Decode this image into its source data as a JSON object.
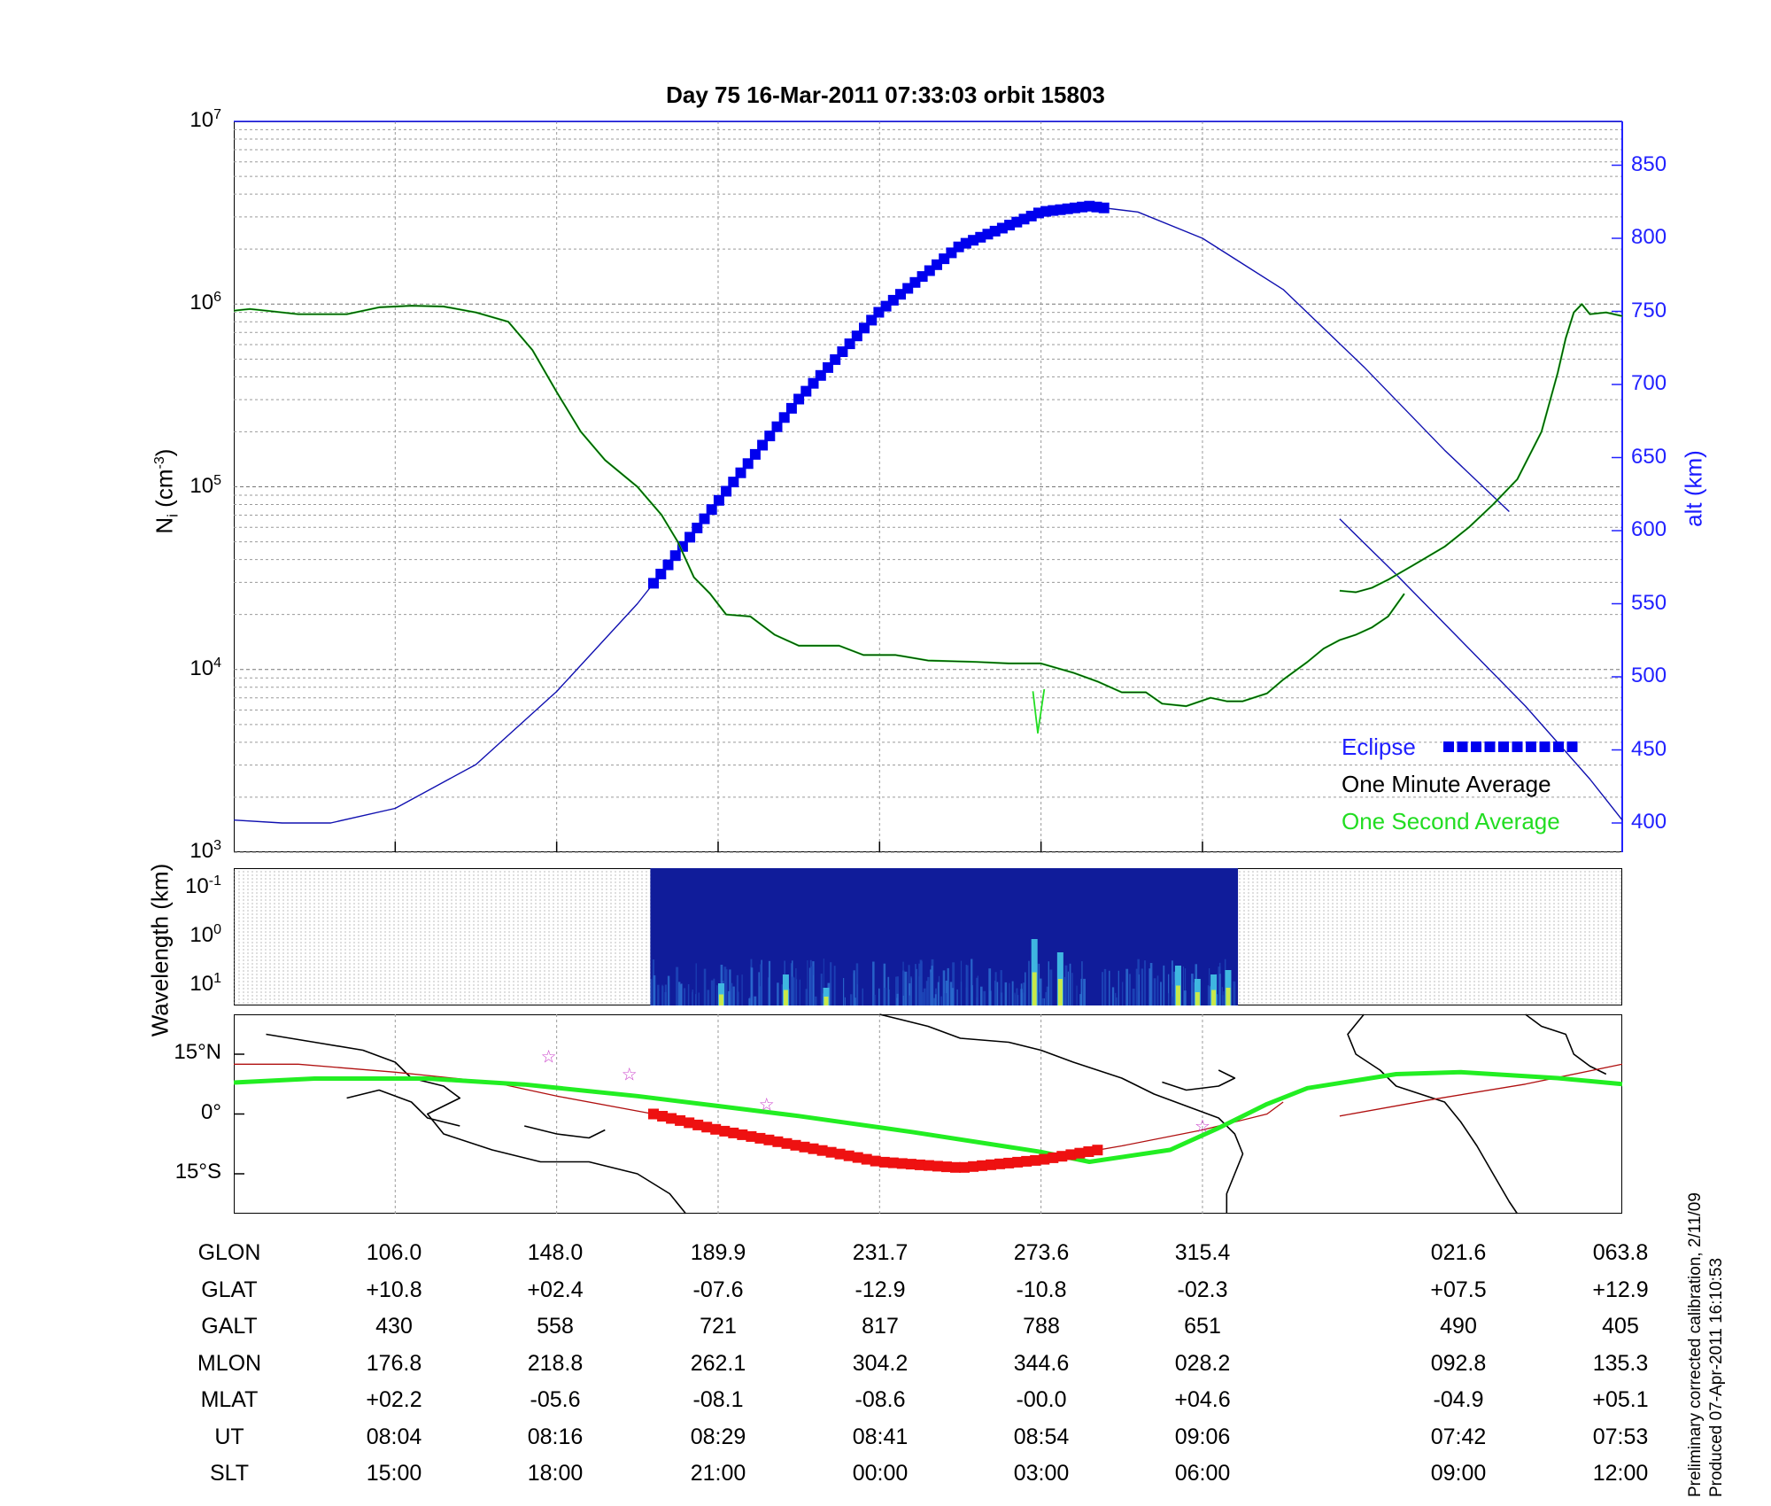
{
  "title": "Day 75  16-Mar-2011 07:33:03   orbit 15803",
  "chart_data": [
    {
      "type": "line",
      "panel": "density-altitude",
      "ylabel_left": "N_i (cm^-3)",
      "ylabel_left_main": "N",
      "ylabel_left_sub": "i",
      "ylabel_left_unit": " (cm",
      "ylabel_left_exp": "-3",
      "ylabel_left_close": ")",
      "ylabel_right": "alt (km)",
      "yscale_left": "log",
      "ylim_left": [
        1000,
        10000000
      ],
      "ylim_right": [
        380,
        880
      ],
      "yticks_left": [
        {
          "base": "10",
          "exp": "3"
        },
        {
          "base": "10",
          "exp": "4"
        },
        {
          "base": "10",
          "exp": "5"
        },
        {
          "base": "10",
          "exp": "6"
        },
        {
          "base": "10",
          "exp": "7"
        }
      ],
      "yticks_right": [
        "400",
        "450",
        "500",
        "550",
        "600",
        "650",
        "700",
        "750",
        "800",
        "850"
      ],
      "grid": true,
      "legend_position": "bottom-right",
      "legend": {
        "eclipse": "Eclipse",
        "one_minute": "One Minute Average",
        "one_second": "One Second Average"
      },
      "colors": {
        "altitude": "#1010b0",
        "eclipse": "#0000ee",
        "one_minute": "#000000",
        "one_second": "#22dd22"
      },
      "x_range_min": [
        0,
        86
      ],
      "altitude_km": {
        "segment_1": [
          [
            0,
            402
          ],
          [
            3,
            400
          ],
          [
            6,
            400
          ],
          [
            10,
            410
          ],
          [
            15,
            440
          ],
          [
            20,
            490
          ],
          [
            25,
            550
          ],
          [
            30,
            620
          ],
          [
            35,
            690
          ],
          [
            40,
            750
          ],
          [
            45,
            795
          ],
          [
            50,
            818
          ],
          [
            53,
            822
          ],
          [
            56,
            818
          ],
          [
            60,
            800
          ],
          [
            65,
            765
          ],
          [
            70,
            712
          ],
          [
            75,
            655
          ],
          [
            79,
            613
          ]
        ],
        "segment_2": [
          [
            68.5,
            608
          ],
          [
            72,
            570
          ],
          [
            76,
            525
          ],
          [
            80,
            480
          ],
          [
            84,
            430
          ],
          [
            86,
            402
          ]
        ]
      },
      "eclipse_x_range": [
        26,
        54
      ],
      "density_minute": {
        "segment_1": [
          [
            0,
            920000
          ],
          [
            1,
            940000
          ],
          [
            2,
            920000
          ],
          [
            4,
            880000
          ],
          [
            7,
            880000
          ],
          [
            9,
            960000
          ],
          [
            11,
            980000
          ],
          [
            13,
            970000
          ],
          [
            15,
            900000
          ],
          [
            17,
            800000
          ],
          [
            18.5,
            560000
          ],
          [
            20,
            330000
          ],
          [
            21.5,
            200000
          ],
          [
            23,
            140000
          ],
          [
            25,
            100000
          ],
          [
            26.5,
            70000
          ],
          [
            27.5,
            50000
          ],
          [
            28.5,
            32000
          ],
          [
            29.5,
            26000
          ],
          [
            30.5,
            20000
          ],
          [
            32,
            19500
          ],
          [
            33.5,
            15500
          ],
          [
            35,
            13500
          ],
          [
            37.5,
            13500
          ],
          [
            39,
            12000
          ],
          [
            41,
            12000
          ],
          [
            43,
            11200
          ],
          [
            46,
            11000
          ],
          [
            48,
            10800
          ],
          [
            50,
            10800
          ],
          [
            52,
            9600
          ],
          [
            53.5,
            8600
          ],
          [
            55,
            7500
          ],
          [
            56.5,
            7500
          ],
          [
            57.5,
            6500
          ],
          [
            59,
            6300
          ],
          [
            60.5,
            7000
          ],
          [
            61.5,
            6700
          ],
          [
            62.5,
            6700
          ],
          [
            64,
            7400
          ],
          [
            65,
            8800
          ],
          [
            66.5,
            11000
          ],
          [
            67.5,
            13000
          ],
          [
            68.5,
            14500
          ],
          [
            69.5,
            15500
          ],
          [
            70.5,
            17000
          ],
          [
            71.5,
            19500
          ],
          [
            72.5,
            26000
          ]
        ],
        "segment_2": [
          [
            68.5,
            27000
          ],
          [
            69.5,
            26500
          ],
          [
            70.5,
            28000
          ],
          [
            71.5,
            31000
          ],
          [
            73,
            37000
          ],
          [
            75,
            47000
          ],
          [
            76.5,
            60000
          ],
          [
            78,
            80000
          ],
          [
            79.5,
            110000
          ],
          [
            81,
            200000
          ],
          [
            82,
            420000
          ],
          [
            82.5,
            650000
          ],
          [
            83,
            900000
          ],
          [
            83.5,
            1000000
          ],
          [
            84,
            880000
          ],
          [
            85,
            900000
          ],
          [
            86,
            860000
          ]
        ]
      },
      "density_second_dip": [
        [
          49.5,
          7600
        ],
        [
          49.8,
          4500
        ],
        [
          50.2,
          7800
        ]
      ]
    },
    {
      "type": "heatmap",
      "panel": "spectrogram",
      "ylabel": "Wavelength (km)",
      "yscale": "log",
      "yticks": [
        {
          "base": "10",
          "exp": "-1"
        },
        {
          "base": "10",
          "exp": "0"
        },
        {
          "base": "10",
          "exp": "1"
        }
      ],
      "data_x_range": [
        25.8,
        62.2
      ],
      "background": "#101c9a"
    },
    {
      "type": "line",
      "panel": "ground-track",
      "yticks": [
        "15°N",
        "0°",
        "15°S"
      ],
      "ylim": [
        -25,
        25
      ],
      "magnetic_equator": [
        [
          0,
          7.9
        ],
        [
          5,
          8.9
        ],
        [
          12,
          8.9
        ],
        [
          18,
          7.4
        ],
        [
          25,
          4.5
        ],
        [
          30,
          2
        ],
        [
          35,
          -0.5
        ],
        [
          42,
          -4.5
        ],
        [
          50,
          -9.5
        ],
        [
          53,
          -12
        ],
        [
          58,
          -9
        ],
        [
          61,
          -3.5
        ],
        [
          64,
          2.5
        ],
        [
          66.5,
          6.5
        ],
        [
          72,
          10
        ],
        [
          76,
          10.5
        ],
        [
          82,
          9
        ],
        [
          86,
          7.5
        ]
      ],
      "orbit_track": {
        "segment_1": [
          [
            0,
            12.5
          ],
          [
            4,
            12.5
          ],
          [
            10,
            10.5
          ],
          [
            16,
            8
          ],
          [
            20,
            4.5
          ],
          [
            26,
            0
          ],
          [
            30,
            -4
          ],
          [
            35,
            -8
          ],
          [
            40,
            -12
          ],
          [
            45,
            -13.5
          ],
          [
            50,
            -11.5
          ],
          [
            55,
            -8
          ],
          [
            60,
            -4
          ],
          [
            64,
            0
          ],
          [
            65,
            3
          ]
        ],
        "segment_2": [
          [
            68.5,
            -0.5
          ],
          [
            74,
            3.5
          ],
          [
            80,
            7.5
          ],
          [
            86,
            12.5
          ]
        ]
      },
      "eclipse_track_x_range": [
        26,
        54
      ],
      "stars": [
        [
          19.5,
          14.5
        ],
        [
          24.5,
          10
        ],
        [
          33,
          2.5
        ],
        [
          60,
          -3
        ]
      ],
      "colors": {
        "equator": "#22ee22",
        "track": "#b01010",
        "eclipse": "#ee1111",
        "stars": "#cc44cc"
      }
    }
  ],
  "table": {
    "row_labels": [
      "GLON",
      "GLAT",
      "GALT",
      "MLON",
      "MLAT",
      "UT",
      "SLT"
    ],
    "columns": [
      [
        "106.0",
        "+10.8",
        "430",
        "176.8",
        "+02.2",
        "08:04",
        "15:00"
      ],
      [
        "148.0",
        "+02.4",
        "558",
        "218.8",
        "-05.6",
        "08:16",
        "18:00"
      ],
      [
        "189.9",
        "-07.6",
        "721",
        "262.1",
        "-08.1",
        "08:29",
        "21:00"
      ],
      [
        "231.7",
        "-12.9",
        "817",
        "304.2",
        "-08.6",
        "08:41",
        "00:00"
      ],
      [
        "273.6",
        "-10.8",
        "788",
        "344.6",
        "-00.0",
        "08:54",
        "03:00"
      ],
      [
        "315.4",
        "-02.3",
        "651",
        "028.2",
        "+04.6",
        "09:06",
        "06:00"
      ],
      [
        "021.6",
        "+07.5",
        "490",
        "092.8",
        "-04.9",
        "07:42",
        "09:00"
      ],
      [
        "063.8",
        "+12.9",
        "405",
        "135.3",
        "+05.1",
        "07:53",
        "12:00"
      ]
    ]
  },
  "side_notes": [
    "Preliminary corrected calibration, 2/11/09",
    "Produced 07-Apr-2011 16:10:53"
  ]
}
